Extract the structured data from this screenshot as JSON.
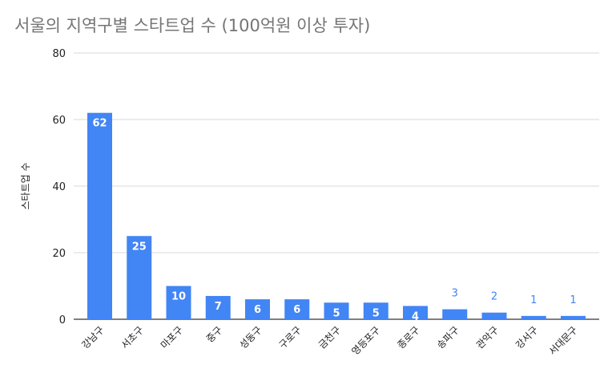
{
  "chart_data": {
    "type": "bar",
    "title": "서울의 지역구별 스타트업 수 (100억원 이상 투자)",
    "xlabel": "",
    "ylabel": "스타트업 수",
    "categories": [
      "강남구",
      "서초구",
      "마포구",
      "중구",
      "성동구",
      "구로구",
      "금천구",
      "영등포구",
      "종로구",
      "송파구",
      "관악구",
      "강서구",
      "서대문구"
    ],
    "values": [
      62,
      25,
      10,
      7,
      6,
      6,
      5,
      5,
      4,
      3,
      2,
      1,
      1
    ],
    "ylim": [
      0,
      80
    ],
    "yticks": [
      0,
      20,
      40,
      60,
      80
    ],
    "bar_color": "#4285f4",
    "grid": true,
    "legend": "none"
  }
}
